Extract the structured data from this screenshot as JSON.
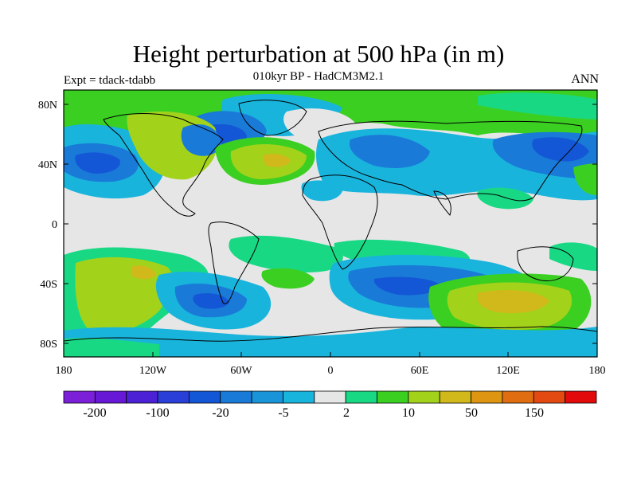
{
  "title": "Height perturbation at 500 hPa (in m)",
  "subtitle": "010kyr BP - HadCM3M2.1",
  "left_note": "Expt = tdack-tdabb",
  "right_note": "ANN",
  "lat_labels": [
    "80N",
    "40N",
    "0",
    "40S",
    "80S"
  ],
  "lon_labels": [
    "180",
    "120W",
    "60W",
    "0",
    "60E",
    "120E",
    "180"
  ],
  "colorbar": {
    "colors": [
      "#7b1fd9",
      "#6618d6",
      "#4c21d6",
      "#2a3fd8",
      "#1457d6",
      "#1a7ad8",
      "#1a94d8",
      "#19b4dc",
      "#e6e6e6",
      "#19d884",
      "#3bcf22",
      "#a3d21a",
      "#d1b81b",
      "#de9612",
      "#e06e10",
      "#e24a12",
      "#e20a0a"
    ],
    "labels": [
      "-200",
      "-100",
      "-20",
      "-5",
      "2",
      "10",
      "50",
      "150"
    ]
  },
  "map_colors": {
    "background": "#e6e6e6",
    "light_blue": "#19b4dc",
    "mid_blue": "#1a94d8",
    "blue": "#1a7ad8",
    "dark_blue": "#1457d6",
    "teal": "#19d884",
    "green": "#3bcf22",
    "yellow_green": "#a3d21a",
    "olive": "#d1b81b"
  }
}
